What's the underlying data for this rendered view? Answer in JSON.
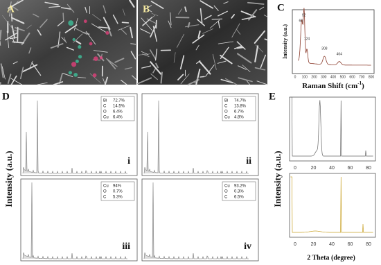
{
  "panels": {
    "A": {
      "label": "A"
    },
    "B": {
      "label": "B"
    },
    "C": {
      "label": "C",
      "y_label": "Intensity (a.u.)",
      "x_label": "Raman Shift (cm",
      "x_label_sup": "-1",
      "x_label_end": ")",
      "x_ticks": [
        0,
        100,
        200,
        300,
        400,
        500,
        600,
        700,
        800
      ],
      "peaks": [
        60,
        92,
        124,
        308,
        464
      ]
    },
    "D": {
      "label": "D",
      "y_label": "Intensity (a.u.)",
      "subplots": [
        {
          "label": "i",
          "composition": [
            [
              "Bi",
              "72.7%"
            ],
            [
              "C",
              "14.5%"
            ],
            [
              "O",
              "6.4%"
            ],
            [
              "Cu",
              "6.4%"
            ]
          ]
        },
        {
          "label": "ii",
          "composition": [
            [
              "Bi",
              "74.7%"
            ],
            [
              "C",
              "13.8%"
            ],
            [
              "O",
              "6.7%"
            ],
            [
              "Cu",
              "4.8%"
            ]
          ]
        },
        {
          "label": "iii",
          "composition": [
            [
              "Cu",
              "94%"
            ],
            [
              "O",
              "0.7%"
            ],
            [
              "C",
              "5.3%"
            ]
          ]
        },
        {
          "label": "iv",
          "composition": [
            [
              "Cu",
              "93.2%"
            ],
            [
              "O",
              "0.3%"
            ],
            [
              "C",
              "6.5%"
            ]
          ]
        }
      ]
    },
    "E": {
      "label": "E",
      "y_label": "Intensity (a.u.)",
      "x_label": "2 Theta (degree)",
      "top_x_ticks": [
        0,
        20,
        40,
        60,
        80
      ],
      "bottom_x_ticks": [
        0,
        20,
        40,
        60,
        80
      ]
    }
  }
}
